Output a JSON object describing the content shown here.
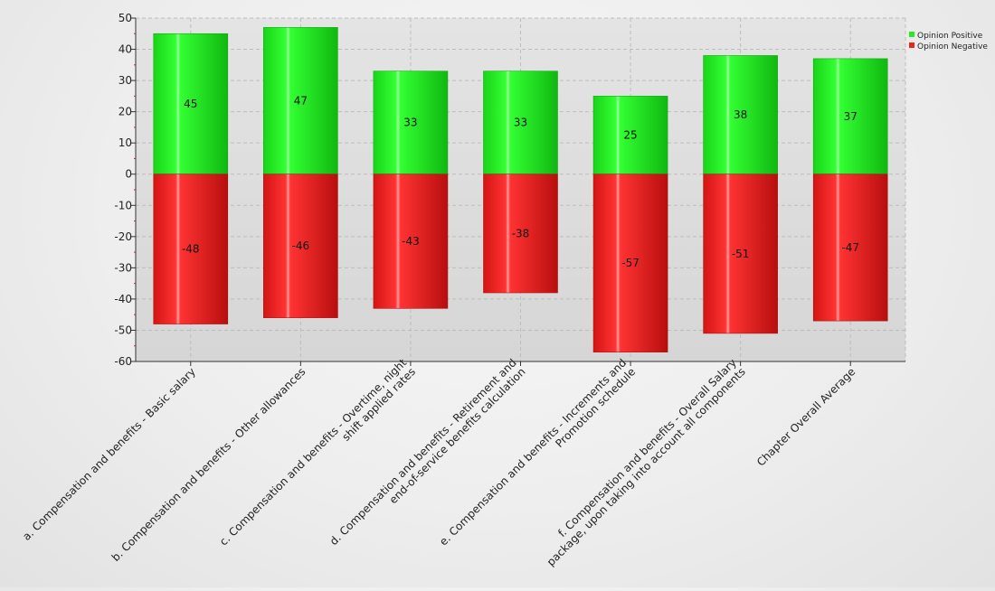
{
  "chart_data": {
    "type": "bar",
    "stacked": true,
    "categories": [
      "a. Compensation and benefits - Basic salary",
      "b. Compensation and benefits - Other allowances",
      "c. Compensation and benefits - Overtime, night shift applied rates",
      "d. Compensation and benefits - Retirement and end-of-service benefits calculation",
      "e. Compensation and benefits - Increments and Promotion schedule",
      "f. Compensation and benefits - Overall Salary package, upon taking into account all components",
      "Chapter Overall Average"
    ],
    "category_lines": [
      [
        "a. Compensation and benefits - Basic salary"
      ],
      [
        "b. Compensation and benefits - Other allowances"
      ],
      [
        "c. Compensation and benefits - Overtime, night",
        "shift applied rates"
      ],
      [
        "d. Compensation and benefits - Retirement and",
        "end-of-service benefits calculation"
      ],
      [
        "e. Compensation and benefits - Increments and",
        "Promotion schedule"
      ],
      [
        "f. Compensation and benefits - Overall Salary",
        "package, upon taking into account all components"
      ],
      [
        "Chapter Overall Average"
      ]
    ],
    "series": [
      {
        "name": "Opinion Positive",
        "values": [
          45,
          47,
          33,
          33,
          25,
          38,
          37
        ],
        "color": "#22ee22"
      },
      {
        "name": "Opinion Negative",
        "values": [
          -48,
          -46,
          -43,
          -38,
          -57,
          -51,
          -47
        ],
        "color": "#ee2222"
      }
    ],
    "ylim": [
      -60,
      50
    ],
    "yticks": [
      50,
      40,
      30,
      20,
      10,
      0,
      -10,
      -20,
      -30,
      -40,
      -50,
      -60
    ],
    "grid": true,
    "legend_position": "top-right",
    "title": "",
    "xlabel": "",
    "ylabel": ""
  }
}
